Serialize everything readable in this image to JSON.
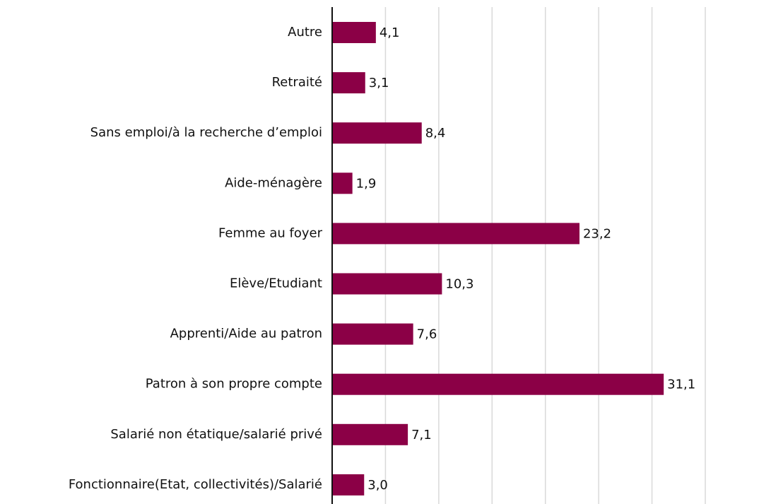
{
  "chart_data": {
    "type": "barh",
    "categories": [
      "Autre",
      "Retraité",
      "Sans emploi/à la recherche d’emploi",
      "Aide-ménagère",
      "Femme au foyer",
      "Elève/Etudiant",
      "Apprenti/Aide au patron",
      "Patron à son propre compte",
      "Salarié non étatique/salarié privé",
      "Fonctionnaire(Etat, collectivités)/Salarié"
    ],
    "values": [
      4.1,
      3.1,
      8.4,
      1.9,
      23.2,
      10.3,
      7.6,
      31.1,
      7.1,
      3.0
    ],
    "value_labels": [
      "4,1",
      "3,1",
      "8,4",
      "1,9",
      "23,2",
      "10,3",
      "7,6",
      "31,1",
      "7,1",
      "3,0"
    ],
    "color": "#8b0046",
    "xlim": [
      0,
      35
    ],
    "xticks": [
      0,
      5,
      10,
      15,
      20,
      25,
      30,
      35
    ],
    "grid": true
  }
}
